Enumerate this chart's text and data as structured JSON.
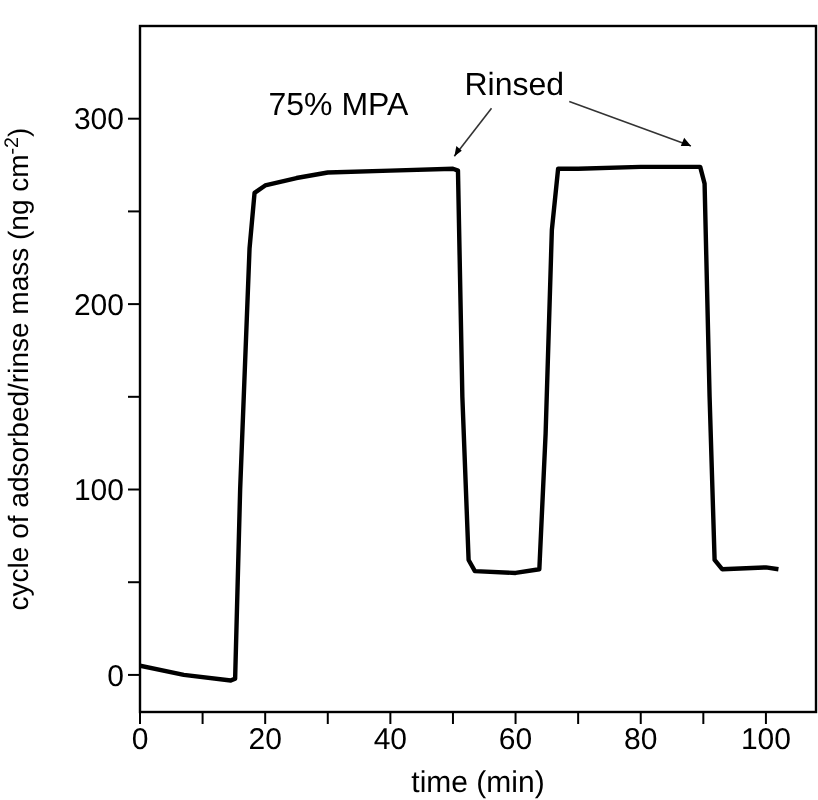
{
  "chart_data": {
    "type": "line",
    "xlabel": "time (min)",
    "ylabel": "cycle of adsorbed/rinse mass (ng cm$^{-2}$)",
    "annotations": [
      "75% MPA",
      "Rinsed"
    ],
    "x": [
      0,
      7,
      14.5,
      15.2,
      16,
      17.5,
      18.3,
      20,
      25,
      30,
      40,
      50,
      50.8,
      51.5,
      52.5,
      53.5,
      60,
      63.8,
      64.8,
      65.8,
      66.8,
      70,
      80,
      89.5,
      90.2,
      91,
      91.8,
      93,
      100,
      102
    ],
    "series": [
      {
        "color": "#000000",
        "values": [
          5,
          0,
          -3,
          -2,
          100,
          230,
          260,
          264,
          268,
          271,
          272,
          273,
          272,
          150,
          62,
          56,
          55,
          57,
          130,
          240,
          273,
          273,
          274,
          274,
          265,
          150,
          62,
          57,
          58,
          57
        ]
      }
    ],
    "xlim": [
      0,
      108
    ],
    "ylim": [
      -20,
      350
    ],
    "xticks": [
      0,
      {
        "value": 10,
        "label": null
      },
      20,
      {
        "value": 30,
        "label": null
      },
      40,
      {
        "value": 50,
        "label": null
      },
      60,
      {
        "value": 70,
        "label": null
      },
      80,
      {
        "value": 90,
        "label": null
      },
      100
    ],
    "yticks": [
      0,
      {
        "value": 50,
        "label": null
      },
      100,
      {
        "value": 150,
        "label": null
      },
      200,
      {
        "value": 250,
        "label": null
      },
      300
    ],
    "grid": false,
    "legend": false,
    "marker": "none",
    "line_style": "solid"
  }
}
